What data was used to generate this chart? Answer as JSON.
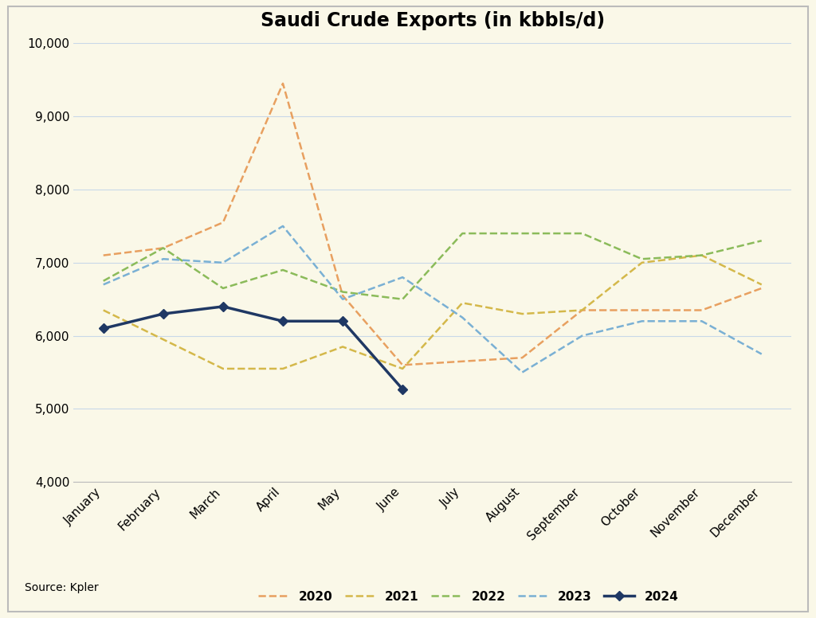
{
  "title": "Saudi Crude Exports (in kbbls/d)",
  "months": [
    "January",
    "February",
    "March",
    "April",
    "May",
    "June",
    "July",
    "August",
    "September",
    "October",
    "November",
    "December"
  ],
  "series": {
    "2020": [
      7100,
      7200,
      7550,
      9450,
      6550,
      5600,
      5650,
      5700,
      6350,
      6350,
      6350,
      6650
    ],
    "2021": [
      6350,
      5950,
      5550,
      5550,
      5850,
      5550,
      6450,
      6300,
      6350,
      7000,
      7100,
      6700
    ],
    "2022": [
      6750,
      7200,
      6650,
      6900,
      6600,
      6500,
      7400,
      7400,
      7400,
      7050,
      7100,
      7300
    ],
    "2023": [
      6700,
      7050,
      7000,
      7500,
      6500,
      6800,
      6250,
      5500,
      6000,
      6200,
      6200,
      5750
    ],
    "2024": [
      6100,
      6300,
      6400,
      6200,
      6200,
      5270,
      null,
      null,
      null,
      null,
      null,
      null
    ]
  },
  "colors": {
    "2020": "#E8A060",
    "2021": "#D4B84A",
    "2022": "#8BBB5A",
    "2023": "#7AB0D4",
    "2024": "#1F3864"
  },
  "source_text": "Source: Kpler",
  "ylim": [
    4000,
    10000
  ],
  "yticks": [
    4000,
    5000,
    6000,
    7000,
    8000,
    9000,
    10000
  ],
  "background_color": "#FAF8E8",
  "grid_color": "#C8D8E8",
  "title_fontsize": 17,
  "axis_fontsize": 11,
  "legend_fontsize": 11,
  "source_fontsize": 10
}
